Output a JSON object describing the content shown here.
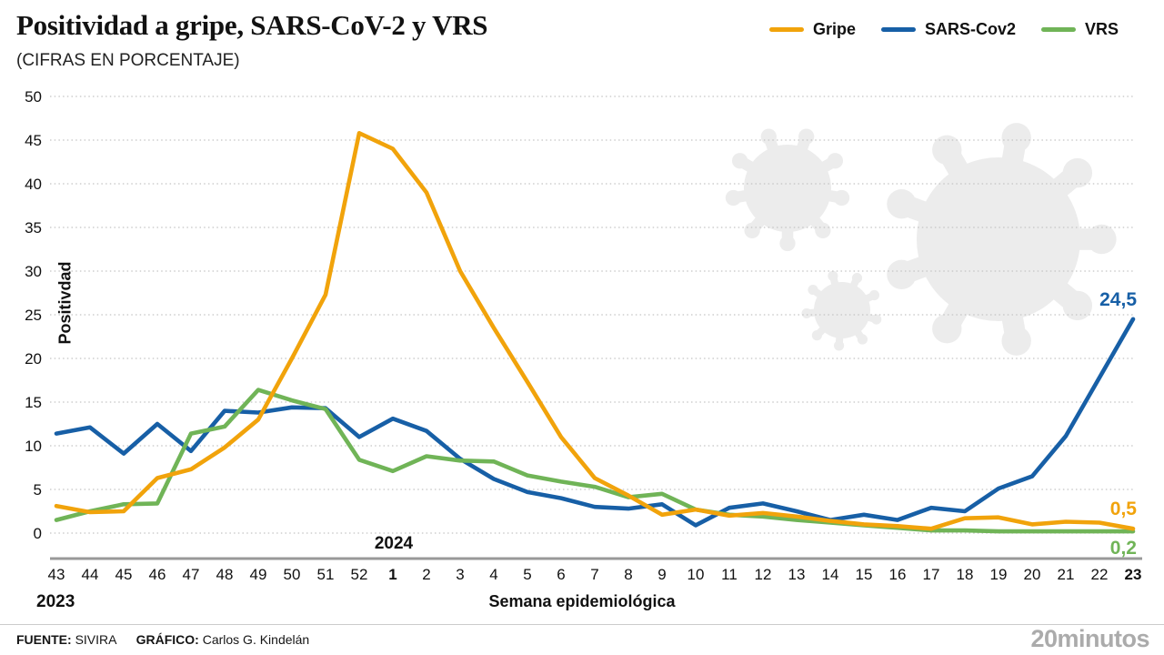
{
  "title": "Positividad a gripe, SARS-CoV-2 y VRS",
  "subtitle": "(CIFRAS EN PORCENTAJE)",
  "legend": [
    {
      "label": "Gripe",
      "color": "#F1A30B"
    },
    {
      "label": "SARS-Cov2",
      "color": "#175FA6"
    },
    {
      "label": "VRS",
      "color": "#70B457"
    }
  ],
  "chart_data": {
    "type": "line",
    "title": "Positividad a gripe, SARS-CoV-2 y VRS",
    "subtitle": "(CIFRAS EN PORCENTAJE)",
    "xlabel": "Semana epidemiológica",
    "ylabel": "Positivdad",
    "ylim": [
      0,
      50
    ],
    "y_ticks": [
      0,
      5,
      10,
      15,
      20,
      25,
      30,
      35,
      40,
      45,
      50
    ],
    "grid": "horizontal-dotted",
    "legend_position": "top-right",
    "x_labels": [
      "43",
      "44",
      "45",
      "46",
      "47",
      "48",
      "49",
      "50",
      "51",
      "52",
      "1",
      "2",
      "3",
      "4",
      "5",
      "6",
      "7",
      "8",
      "9",
      "10",
      "11",
      "12",
      "13",
      "14",
      "15",
      "16",
      "17",
      "18",
      "19",
      "20",
      "21",
      "22",
      "23"
    ],
    "bold_x_indices": [
      10,
      32
    ],
    "year_labels": {
      "left": "2023",
      "right": "2024"
    },
    "series": [
      {
        "name": "SARS-Cov2",
        "color": "#175FA6",
        "end_label": "24,5",
        "end_label_side": "above",
        "values": [
          11.4,
          12.1,
          9.1,
          12.5,
          9.4,
          14.0,
          13.8,
          14.4,
          14.3,
          11.0,
          13.1,
          11.7,
          8.5,
          6.2,
          4.7,
          4.0,
          3.0,
          2.8,
          3.3,
          0.9,
          2.9,
          3.4,
          2.5,
          1.5,
          2.1,
          1.5,
          2.9,
          2.5,
          5.1,
          6.5,
          11.1,
          17.8,
          24.5
        ]
      },
      {
        "name": "VRS",
        "color": "#70B457",
        "end_label": "0,2",
        "end_label_side": "below",
        "values": [
          1.5,
          2.5,
          3.3,
          3.4,
          11.4,
          12.2,
          16.4,
          15.2,
          14.2,
          8.4,
          7.1,
          8.8,
          8.3,
          8.2,
          6.6,
          5.9,
          5.3,
          4.1,
          4.5,
          2.7,
          2.1,
          1.9,
          1.5,
          1.2,
          0.9,
          0.6,
          0.3,
          0.3,
          0.2,
          0.2,
          0.2,
          0.2,
          0.2
        ]
      },
      {
        "name": "Gripe",
        "color": "#F1A30B",
        "end_label": "0,5",
        "end_label_side": "above",
        "values": [
          3.1,
          2.4,
          2.5,
          6.3,
          7.3,
          9.8,
          13.0,
          20.0,
          27.3,
          45.8,
          44.0,
          39.0,
          30.0,
          23.5,
          17.3,
          11.0,
          6.3,
          4.3,
          2.1,
          2.7,
          2.0,
          2.3,
          1.9,
          1.4,
          1.0,
          0.8,
          0.5,
          1.7,
          1.8,
          1.0,
          1.3,
          1.2,
          0.5
        ]
      }
    ]
  },
  "footer": {
    "source_label": "FUENTE:",
    "source": "SIVIRA",
    "credit_label": "GRÁFICO:",
    "credit": "Carlos G. Kindelán",
    "brand": "20minutos"
  }
}
